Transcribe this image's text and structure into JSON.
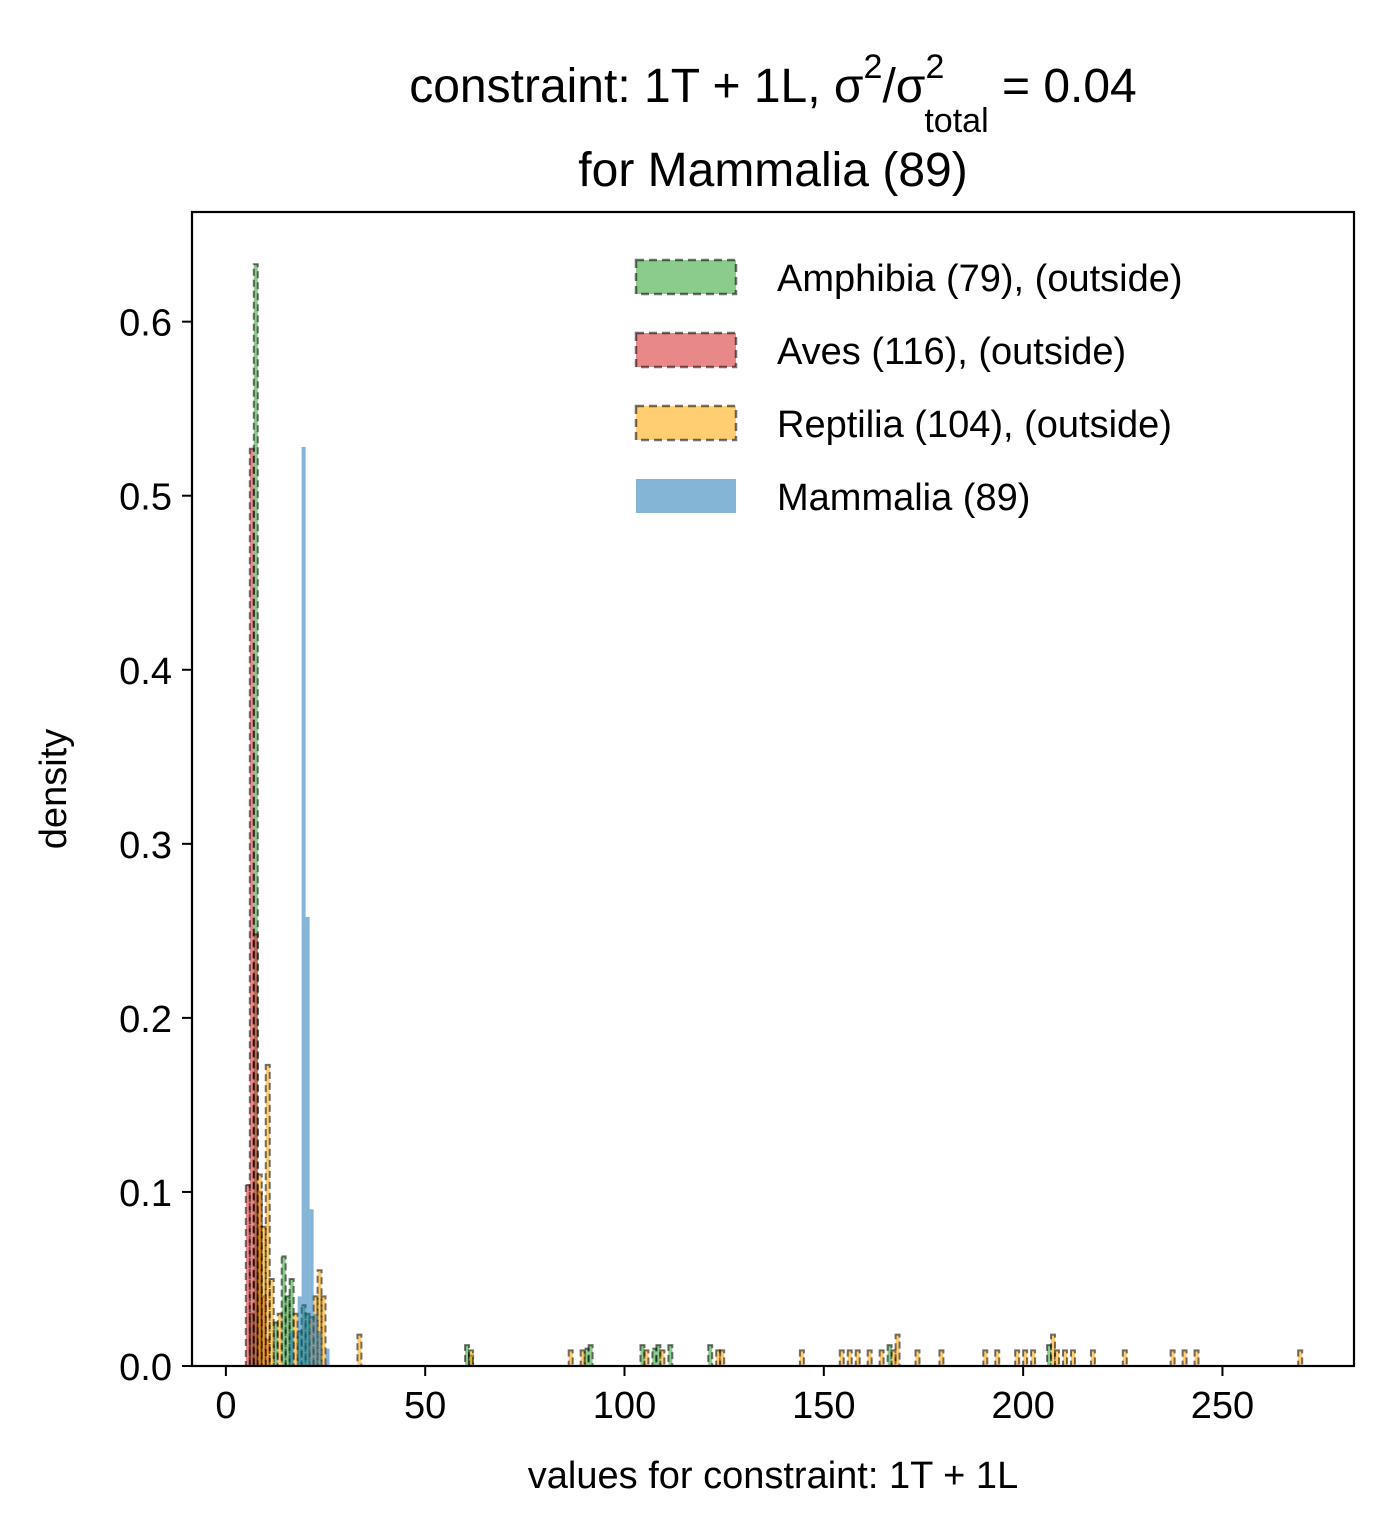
{
  "chart_data": {
    "type": "bar",
    "title": {
      "prefix": "constraint: 1T + 1L, σ",
      "sup1": "2",
      "mid": "/σ",
      "sup2": "2",
      "sub": "total",
      "suffix": " =  0.04",
      "line2": "for Mammalia (89)"
    },
    "xlabel": "values for constraint: 1T + 1L",
    "ylabel": "density",
    "xlim": [
      -8.5,
      283
    ],
    "ylim": [
      0,
      0.663
    ],
    "xticks": [
      0,
      50,
      100,
      150,
      200,
      250
    ],
    "xtick_labels": [
      "0",
      "50",
      "100",
      "150",
      "200",
      "250"
    ],
    "yticks": [
      0.0,
      0.1,
      0.2,
      0.3,
      0.4,
      0.5,
      0.6
    ],
    "ytick_labels": [
      "0.0",
      "0.1",
      "0.2",
      "0.3",
      "0.4",
      "0.5",
      "0.6"
    ],
    "bin_width": 1,
    "legend_position": "top-right",
    "series": [
      {
        "name": "Amphibia (79), (outside)",
        "color": "#2ca02c",
        "style": "dashed",
        "bins": [
          [
            6,
            0.03
          ],
          [
            7,
            0.633
          ],
          [
            8,
            0.08
          ],
          [
            12,
            0.025
          ],
          [
            14,
            0.063
          ],
          [
            15,
            0.04
          ],
          [
            16,
            0.05
          ],
          [
            18,
            0.02
          ],
          [
            19,
            0.035
          ],
          [
            20,
            0.03
          ],
          [
            60,
            0.012
          ],
          [
            61,
            0.006
          ],
          [
            90,
            0.01
          ],
          [
            91,
            0.012
          ],
          [
            104,
            0.012
          ],
          [
            107,
            0.01
          ],
          [
            108,
            0.012
          ],
          [
            111,
            0.012
          ],
          [
            121,
            0.012
          ],
          [
            166,
            0.012
          ],
          [
            206,
            0.012
          ]
        ]
      },
      {
        "name": "Aves (116), (outside)",
        "color": "#d62728",
        "style": "dashed",
        "bins": [
          [
            5,
            0.104
          ],
          [
            6,
            0.527
          ],
          [
            7,
            0.248
          ],
          [
            8,
            0.1
          ],
          [
            9,
            0.04
          ],
          [
            10,
            0.015
          ]
        ]
      },
      {
        "name": "Reptilia (104), (outside)",
        "color": "#ffa500",
        "style": "dashed",
        "bins": [
          [
            8,
            0.11
          ],
          [
            9,
            0.08
          ],
          [
            10,
            0.173
          ],
          [
            11,
            0.05
          ],
          [
            13,
            0.03
          ],
          [
            17,
            0.03
          ],
          [
            21,
            0.028
          ],
          [
            22,
            0.04
          ],
          [
            23,
            0.055
          ],
          [
            24,
            0.04
          ],
          [
            33,
            0.018
          ],
          [
            61,
            0.009
          ],
          [
            86,
            0.009
          ],
          [
            89,
            0.009
          ],
          [
            105,
            0.009
          ],
          [
            109,
            0.009
          ],
          [
            123,
            0.009
          ],
          [
            124,
            0.009
          ],
          [
            144,
            0.009
          ],
          [
            154,
            0.009
          ],
          [
            156,
            0.009
          ],
          [
            158,
            0.009
          ],
          [
            161,
            0.009
          ],
          [
            164,
            0.009
          ],
          [
            167,
            0.009
          ],
          [
            168,
            0.018
          ],
          [
            173,
            0.009
          ],
          [
            179,
            0.009
          ],
          [
            190,
            0.009
          ],
          [
            193,
            0.009
          ],
          [
            198,
            0.009
          ],
          [
            200,
            0.009
          ],
          [
            202,
            0.009
          ],
          [
            207,
            0.018
          ],
          [
            208,
            0.009
          ],
          [
            210,
            0.009
          ],
          [
            212,
            0.009
          ],
          [
            217,
            0.009
          ],
          [
            225,
            0.009
          ],
          [
            237,
            0.009
          ],
          [
            240,
            0.009
          ],
          [
            243,
            0.009
          ],
          [
            269,
            0.009
          ]
        ]
      },
      {
        "name": "Mammalia (89)",
        "color": "#1f77b4",
        "style": "solid",
        "bins": [
          [
            16,
            0.02
          ],
          [
            18,
            0.04
          ],
          [
            19,
            0.528
          ],
          [
            20,
            0.258
          ],
          [
            21,
            0.09
          ],
          [
            22,
            0.03
          ],
          [
            23,
            0.02
          ],
          [
            25,
            0.01
          ]
        ]
      }
    ]
  }
}
